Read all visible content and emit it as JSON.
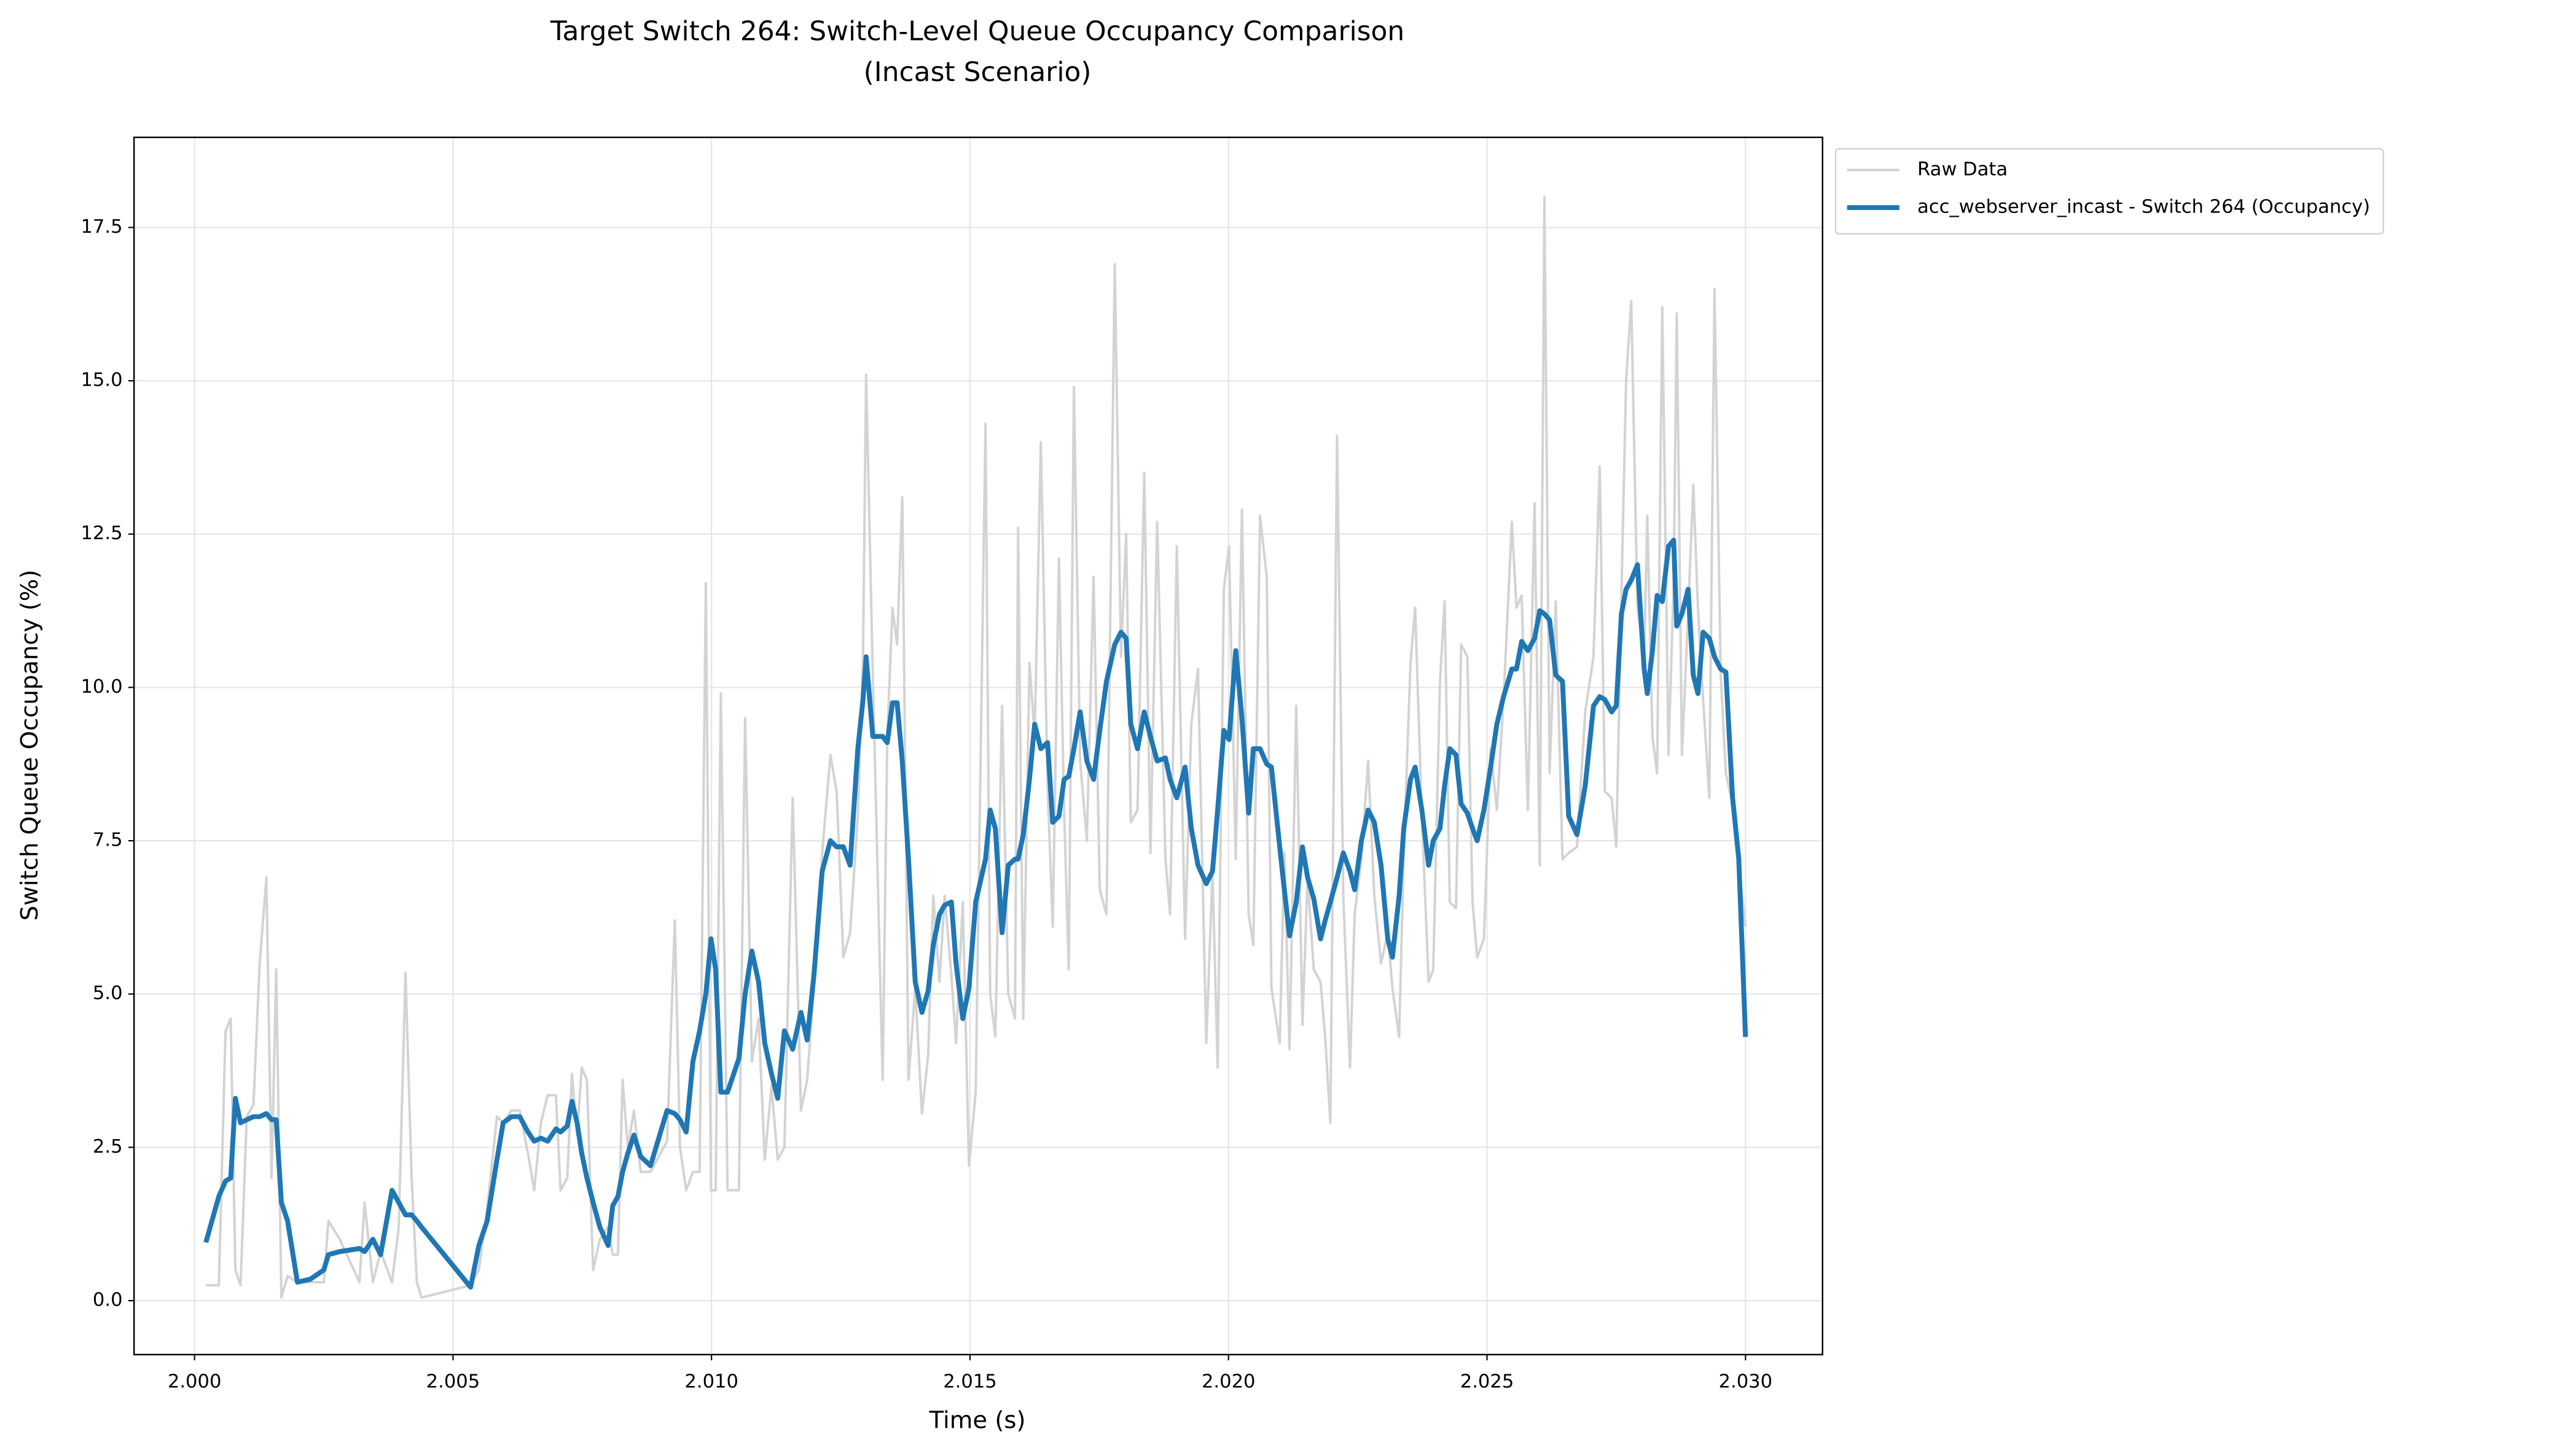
{
  "chart_data": {
    "type": "line",
    "title": "Target Switch 264: Switch-Level Queue Occupancy Comparison\n(Incast Scenario)",
    "xlabel": "Time (s)",
    "ylabel": "Switch Queue Occupancy (%)",
    "x": [
      2.00022,
      2.00047,
      2.0006,
      2.0007,
      2.00079,
      2.00089,
      2.00101,
      2.00114,
      2.00126,
      2.00139,
      2.00149,
      2.00158,
      2.00168,
      2.0018,
      2.00199,
      2.00224,
      2.0025,
      2.00259,
      2.00281,
      2.00319,
      2.00329,
      2.00345,
      2.0036,
      2.00382,
      2.00395,
      2.00408,
      2.0042,
      2.0043,
      2.00439,
      2.00534,
      2.0055,
      2.00566,
      2.00585,
      2.00597,
      2.00613,
      2.00629,
      2.00645,
      2.00657,
      2.0067,
      2.00683,
      2.00699,
      2.00708,
      2.00721,
      2.0073,
      2.0074,
      2.00749,
      2.00759,
      2.00771,
      2.00784,
      2.008,
      2.00809,
      2.00819,
      2.00828,
      2.00838,
      2.0085,
      2.00863,
      2.00882,
      2.00914,
      2.00929,
      2.00939,
      2.00951,
      2.00964,
      2.00977,
      2.00989,
      2.00999,
      2.01008,
      2.01018,
      2.01031,
      2.01053,
      2.01065,
      2.01078,
      2.01091,
      2.01103,
      2.01116,
      2.01128,
      2.01141,
      2.01157,
      2.01173,
      2.01185,
      2.01198,
      2.01214,
      2.0123,
      2.01242,
      2.01255,
      2.01268,
      2.01283,
      2.01293,
      2.01299,
      2.01312,
      2.01331,
      2.0134,
      2.0135,
      2.01359,
      2.01369,
      2.01381,
      2.01394,
      2.01407,
      2.01419,
      2.01429,
      2.01441,
      2.01451,
      2.01464,
      2.01473,
      2.01486,
      2.01498,
      2.01511,
      2.0153,
      2.01539,
      2.01549,
      2.01562,
      2.01574,
      2.01587,
      2.01593,
      2.01603,
      2.01615,
      2.01625,
      2.01637,
      2.0165,
      2.0166,
      2.01672,
      2.01682,
      2.01691,
      2.01701,
      2.01713,
      2.01726,
      2.01739,
      2.01751,
      2.01764,
      2.0178,
      2.01792,
      2.01802,
      2.01811,
      2.01824,
      2.01837,
      2.01849,
      2.01862,
      2.01878,
      2.01887,
      2.019,
      2.01916,
      2.01928,
      2.01941,
      2.01957,
      2.01969,
      2.01979,
      2.01991,
      2.02001,
      2.02014,
      2.02026,
      2.02039,
      2.02048,
      2.02061,
      2.02074,
      2.02083,
      2.02099,
      2.02108,
      2.02118,
      2.02131,
      2.02143,
      2.02153,
      2.02165,
      2.02178,
      2.02187,
      2.02197,
      2.0221,
      2.02222,
      2.02235,
      2.02244,
      2.02257,
      2.0227,
      2.02282,
      2.02295,
      2.02308,
      2.02317,
      2.0233,
      2.02339,
      2.02352,
      2.02361,
      2.02374,
      2.02387,
      2.02396,
      2.02409,
      2.02418,
      2.02428,
      2.0244,
      2.0245,
      2.02462,
      2.02472,
      2.02481,
      2.02494,
      2.02507,
      2.02519,
      2.02532,
      2.02548,
      2.02557,
      2.02567,
      2.02579,
      2.02592,
      2.02602,
      2.02611,
      2.02621,
      2.02633,
      2.02646,
      2.02658,
      2.02674,
      2.0269,
      2.02706,
      2.02718,
      2.02728,
      2.02741,
      2.0275,
      2.0276,
      2.02769,
      2.02779,
      2.02791,
      2.02804,
      2.0281,
      2.0282,
      2.02829,
      2.02839,
      2.02851,
      2.02861,
      2.02867,
      2.02877,
      2.02889,
      2.02899,
      2.02908,
      2.02918,
      2.0293,
      2.0294,
      2.02952,
      2.02962,
      2.02975,
      2.02987,
      2.03
    ],
    "series": [
      {
        "name": "Raw Data",
        "color": "#d3d3d3",
        "width": 1.5,
        "values": [
          0.25,
          0.25,
          4.4,
          4.6,
          0.5,
          0.25,
          3.0,
          3.2,
          5.5,
          6.9,
          2.0,
          5.4,
          0.05,
          0.4,
          0.3,
          0.3,
          0.3,
          1.3,
          1.0,
          0.3,
          1.6,
          0.3,
          0.8,
          0.3,
          1.2,
          5.35,
          2.0,
          0.3,
          0.05,
          0.25,
          0.5,
          1.5,
          3.0,
          2.9,
          3.1,
          3.1,
          2.4,
          1.8,
          2.9,
          3.35,
          3.35,
          1.8,
          2.0,
          3.7,
          2.7,
          3.8,
          3.6,
          0.5,
          1.0,
          1.2,
          0.75,
          0.75,
          3.6,
          2.5,
          3.1,
          2.1,
          2.1,
          2.6,
          6.2,
          2.5,
          1.8,
          2.1,
          2.1,
          11.7,
          1.8,
          1.8,
          9.9,
          1.8,
          1.8,
          9.5,
          3.9,
          4.6,
          2.3,
          3.5,
          2.3,
          2.5,
          8.2,
          3.1,
          3.6,
          5.1,
          7.3,
          8.9,
          8.3,
          5.6,
          6.0,
          7.9,
          10.5,
          15.1,
          10.2,
          3.6,
          9.2,
          11.3,
          10.7,
          13.1,
          3.6,
          5.1,
          3.05,
          4.0,
          6.6,
          5.2,
          6.6,
          5.3,
          4.2,
          6.5,
          2.2,
          3.4,
          14.3,
          5.0,
          4.3,
          9.7,
          5.0,
          4.6,
          12.6,
          4.6,
          10.4,
          9.2,
          14.0,
          8.4,
          6.1,
          12.1,
          8.0,
          5.4,
          14.9,
          8.8,
          7.5,
          11.8,
          6.7,
          6.3,
          16.9,
          10.5,
          12.5,
          7.8,
          8.0,
          13.5,
          7.3,
          12.7,
          7.2,
          6.3,
          12.3,
          5.9,
          9.4,
          10.3,
          4.2,
          7.0,
          3.8,
          11.6,
          12.3,
          7.2,
          12.9,
          6.3,
          5.8,
          12.8,
          11.8,
          5.1,
          4.2,
          7.3,
          4.1,
          9.7,
          4.5,
          6.9,
          5.4,
          5.2,
          4.3,
          2.9,
          14.1,
          6.6,
          3.8,
          6.3,
          7.2,
          8.8,
          6.6,
          5.5,
          6.0,
          5.1,
          4.3,
          7.3,
          10.4,
          11.3,
          7.9,
          5.2,
          5.4,
          10.1,
          11.4,
          6.5,
          6.4,
          10.7,
          10.5,
          6.5,
          5.6,
          5.9,
          9.0,
          8.0,
          9.8,
          12.7,
          11.3,
          11.5,
          8.0,
          13.0,
          7.1,
          18.0,
          8.6,
          11.4,
          7.2,
          7.3,
          7.4,
          9.6,
          10.5,
          13.6,
          8.3,
          8.2,
          7.4,
          11.5,
          15.0,
          16.3,
          11.3,
          10.5,
          12.8,
          9.2,
          8.6,
          16.2,
          8.9,
          11.7,
          16.1,
          8.9,
          11.2,
          13.3,
          11.3,
          9.8,
          8.2,
          16.5,
          10.2,
          8.6,
          8.1,
          7.1,
          6.1
        ]
      },
      {
        "name": "acc_webserver_incast - Switch 264 (Occupancy)",
        "color": "#1f77b4",
        "width": 3,
        "values": [
          0.95,
          1.7,
          1.95,
          2.0,
          3.3,
          2.9,
          2.95,
          3.0,
          3.0,
          3.05,
          2.95,
          2.95,
          1.6,
          1.3,
          0.3,
          0.35,
          0.5,
          0.75,
          0.8,
          0.85,
          0.8,
          1.0,
          0.75,
          1.8,
          1.6,
          1.4,
          1.4,
          1.3,
          1.2,
          0.22,
          0.9,
          1.3,
          2.3,
          2.9,
          3.0,
          3.0,
          2.75,
          2.6,
          2.65,
          2.6,
          2.8,
          2.75,
          2.85,
          3.25,
          2.9,
          2.4,
          2.0,
          1.6,
          1.2,
          0.9,
          1.55,
          1.7,
          2.1,
          2.4,
          2.7,
          2.35,
          2.2,
          3.1,
          3.05,
          2.95,
          2.75,
          3.9,
          4.4,
          5.0,
          5.9,
          5.4,
          3.4,
          3.4,
          3.95,
          5.0,
          5.7,
          5.2,
          4.2,
          3.7,
          3.3,
          4.4,
          4.1,
          4.7,
          4.25,
          5.3,
          7.0,
          7.5,
          7.4,
          7.4,
          7.1,
          9.0,
          9.8,
          10.5,
          9.2,
          9.2,
          9.1,
          9.75,
          9.75,
          8.8,
          7.2,
          5.2,
          4.7,
          5.05,
          5.8,
          6.3,
          6.45,
          6.5,
          5.5,
          4.6,
          5.1,
          6.5,
          7.2,
          8.0,
          7.7,
          6.0,
          7.1,
          7.2,
          7.2,
          7.6,
          8.5,
          9.4,
          9.0,
          9.1,
          7.8,
          7.9,
          8.5,
          8.55,
          9.0,
          9.6,
          8.8,
          8.5,
          9.3,
          10.1,
          10.7,
          10.9,
          10.8,
          9.4,
          9.0,
          9.6,
          9.2,
          8.8,
          8.85,
          8.5,
          8.2,
          8.7,
          7.7,
          7.1,
          6.8,
          7.0,
          8.0,
          9.3,
          9.15,
          10.6,
          9.5,
          7.95,
          9.0,
          9.0,
          8.75,
          8.7,
          7.4,
          6.7,
          5.95,
          6.5,
          7.4,
          6.9,
          6.55,
          5.9,
          6.2,
          6.5,
          6.9,
          7.3,
          7.0,
          6.7,
          7.5,
          8.0,
          7.8,
          7.1,
          5.9,
          5.6,
          6.6,
          7.7,
          8.5,
          8.7,
          8.0,
          7.1,
          7.5,
          7.7,
          8.4,
          9.0,
          8.9,
          8.1,
          7.95,
          7.7,
          7.5,
          8.0,
          8.7,
          9.4,
          9.85,
          10.3,
          10.3,
          10.75,
          10.6,
          10.8,
          11.25,
          11.2,
          11.1,
          10.2,
          10.1,
          7.9,
          7.6,
          8.4,
          9.7,
          9.85,
          9.8,
          9.6,
          9.7,
          11.2,
          11.6,
          11.75,
          12.0,
          10.3,
          9.9,
          10.6,
          11.5,
          11.4,
          12.3,
          12.4,
          11.0,
          11.2,
          11.6,
          10.2,
          9.9,
          10.9,
          10.8,
          10.5,
          10.3,
          10.25,
          8.2,
          7.2,
          4.3
        ]
      }
    ],
    "xlim": [
      1.99883,
      2.03149
    ],
    "ylim": [
      -0.88,
      18.97
    ],
    "xticks": [
      {
        "value": 2.0,
        "label": "2.000"
      },
      {
        "value": 2.005,
        "label": "2.005"
      },
      {
        "value": 2.01,
        "label": "2.010"
      },
      {
        "value": 2.015,
        "label": "2.015"
      },
      {
        "value": 2.02,
        "label": "2.020"
      },
      {
        "value": 2.025,
        "label": "2.025"
      },
      {
        "value": 2.03,
        "label": "2.030"
      }
    ],
    "yticks": [
      {
        "value": 0,
        "label": "0.0"
      },
      2.5,
      {
        "value": 5,
        "label": "5.0"
      },
      7.5,
      {
        "value": 10,
        "label": "10.0"
      },
      12.5,
      {
        "value": 15,
        "label": "15.0"
      },
      17.5
    ],
    "grid": true,
    "legend": "outside"
  }
}
